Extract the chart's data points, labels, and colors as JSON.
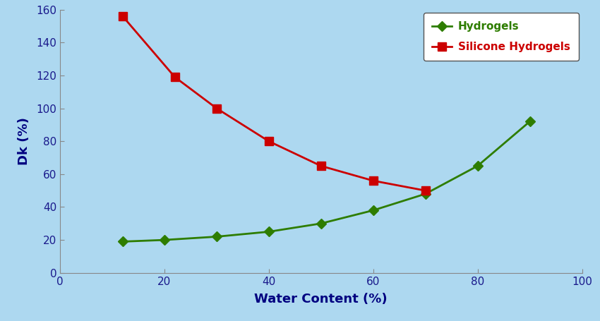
{
  "hydrogels_x": [
    12,
    20,
    30,
    40,
    50,
    60,
    70,
    80,
    90
  ],
  "hydrogels_y": [
    19,
    20,
    22,
    25,
    30,
    38,
    48,
    65,
    92
  ],
  "silicone_x": [
    12,
    22,
    30,
    40,
    50,
    60,
    70
  ],
  "silicone_y": [
    156,
    119,
    100,
    80,
    65,
    56,
    50
  ],
  "hydrogels_color": "#2e7d00",
  "silicone_color": "#cc0000",
  "xlabel": "Water Content (%)",
  "ylabel": "Dk (%)",
  "xlim": [
    0,
    100
  ],
  "ylim": [
    0,
    160
  ],
  "xticks": [
    0,
    20,
    40,
    60,
    80,
    100
  ],
  "yticks": [
    0,
    20,
    40,
    60,
    80,
    100,
    120,
    140,
    160
  ],
  "background_color": "#add8f0",
  "legend_hydrogels": "Hydrogels",
  "legend_silicone": "Silicone Hydrogels",
  "axis_label_fontsize": 13,
  "tick_fontsize": 11,
  "legend_fontsize": 11,
  "tick_color": "#1a1a8c",
  "label_color": "#000000",
  "spine_color": "#888888"
}
